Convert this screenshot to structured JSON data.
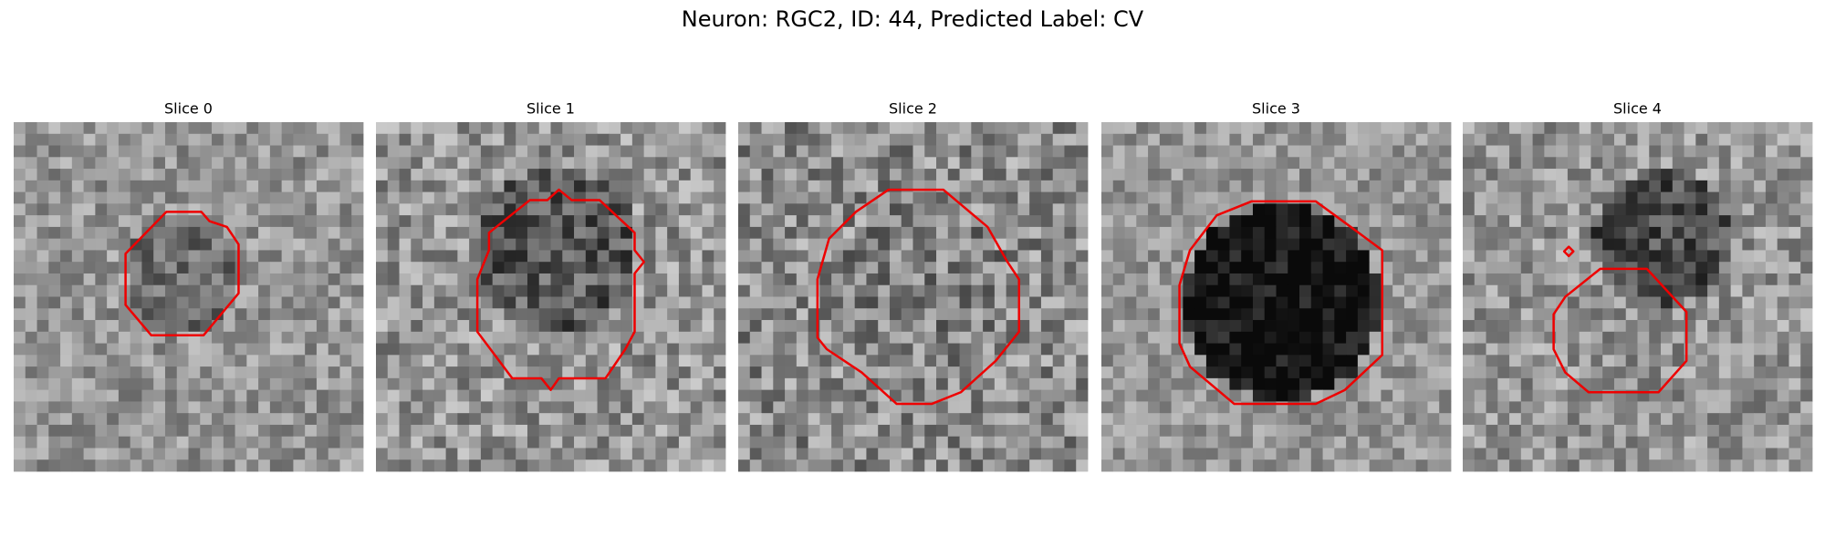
{
  "title": "Neuron: RGC2, ID: 44, Predicted Label: CV",
  "panels": [
    {
      "title": "Slice 0"
    },
    {
      "title": "Slice 1"
    },
    {
      "title": "Slice 2"
    },
    {
      "title": "Slice 3"
    },
    {
      "title": "Slice 4"
    }
  ]
}
